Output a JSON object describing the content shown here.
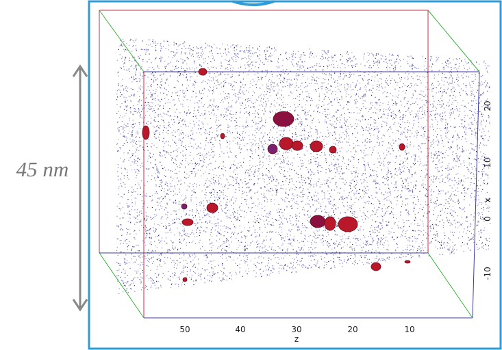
{
  "scale_label": "45 nm",
  "z_axis": {
    "label": "z",
    "ticks": [
      "50",
      "40",
      "30",
      "20",
      "10"
    ]
  },
  "x_axis": {
    "label": "x",
    "ticks": [
      "20",
      "10",
      "0",
      "-10"
    ]
  }
}
